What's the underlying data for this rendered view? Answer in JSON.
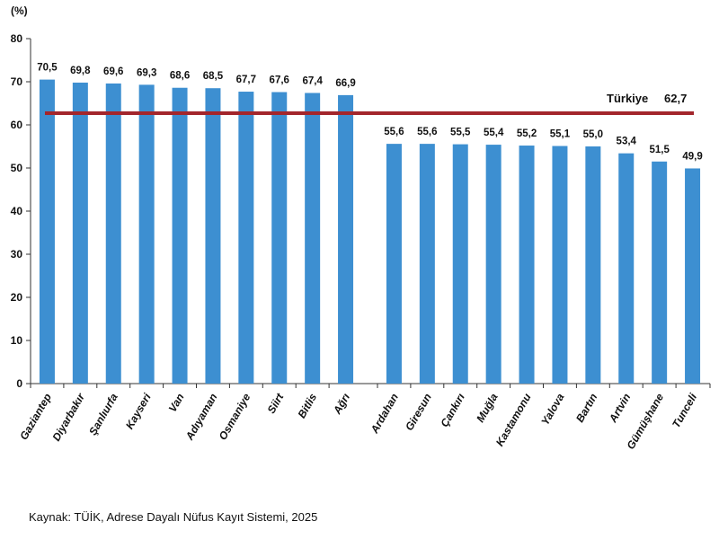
{
  "chart_data": {
    "type": "bar",
    "unit_label": "(%)",
    "categories": [
      "Gaziantep",
      "Diyarbakır",
      "Şanlıurfa",
      "Kayseri",
      "Van",
      "Adıyaman",
      "Osmaniye",
      "Siirt",
      "Bitlis",
      "Ağrı",
      "Ardahan",
      "Giresun",
      "Çankırı",
      "Muğla",
      "Kastamonu",
      "Yalova",
      "Bartın",
      "Artvin",
      "Gümüşhane",
      "Tunceli"
    ],
    "values": [
      70.5,
      69.8,
      69.6,
      69.3,
      68.6,
      68.5,
      67.7,
      67.6,
      67.4,
      66.9,
      55.6,
      55.6,
      55.5,
      55.4,
      55.2,
      55.1,
      55.0,
      53.4,
      51.5,
      49.9
    ],
    "value_labels": [
      "70,5",
      "69,8",
      "69,6",
      "69,3",
      "68,6",
      "68,5",
      "67,7",
      "67,6",
      "67,4",
      "66,9",
      "55,6",
      "55,6",
      "55,5",
      "55,4",
      "55,2",
      "55,1",
      "55,0",
      "53,4",
      "51,5",
      "49,9"
    ],
    "ylim": [
      0,
      80
    ],
    "yticks": [
      "0",
      "10",
      "20",
      "30",
      "40",
      "50",
      "60",
      "70",
      "80"
    ],
    "reference_line": {
      "label": "Türkiye",
      "value": 62.7,
      "value_label": "62,7"
    },
    "bar_color": "#3d8fd1",
    "reference_color": "#a3262c",
    "grid": false
  },
  "source_text": "Kaynak: TÜİK, Adrese Dayalı Nüfus Kayıt Sistemi, 2025"
}
